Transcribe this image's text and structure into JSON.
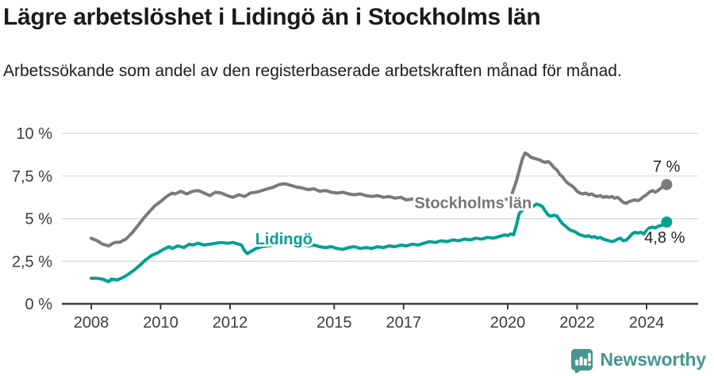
{
  "header": {
    "title": "Lägre arbetslöshet i Lidingö än i Stockholms län",
    "subtitle": "Arbetssökande som andel av den registerbaserade arbetskraften månad för månad."
  },
  "footer": {
    "brand": "Newsworthy"
  },
  "colors": {
    "stockholm_line": "#7a7a7a",
    "stockholm_label": "#767676",
    "lidingo_line": "#00a092",
    "grid": "#dcdcdc",
    "axis": "#3c3c3c",
    "title_text": "#1a1a1a",
    "annotation_text": "#232323",
    "brand": "#47968f"
  },
  "chart_data": {
    "type": "line",
    "unit": "%",
    "x_range": [
      2007.15,
      2025.5
    ],
    "y_range": [
      0,
      10
    ],
    "grid": true,
    "y_ticks": [
      {
        "v": 0,
        "label": "0 %"
      },
      {
        "v": 2.5,
        "label": "2,5 %"
      },
      {
        "v": 5,
        "label": "5 %"
      },
      {
        "v": 7.5,
        "label": "7,5 %"
      },
      {
        "v": 10,
        "label": "10 %"
      }
    ],
    "x_ticks": [
      {
        "x": 2008,
        "label": "2008"
      },
      {
        "x": 2010,
        "label": "2010"
      },
      {
        "x": 2012,
        "label": "2012"
      },
      {
        "x": 2015,
        "label": "2015"
      },
      {
        "x": 2017,
        "label": "2017"
      },
      {
        "x": 2020,
        "label": "2020"
      },
      {
        "x": 2022,
        "label": "2022"
      },
      {
        "x": 2024,
        "label": "2024"
      }
    ],
    "series": [
      {
        "name": "Stockholms län",
        "color": "#7a7a7a",
        "label_color": "#767676",
        "label_anchor": {
          "x": 2019.0,
          "y": 5.6
        },
        "end_label": "7 %",
        "end_label_offset": {
          "dx": 17,
          "dy": -16
        },
        "points": [
          [
            2008.0,
            3.85
          ],
          [
            2008.17,
            3.7
          ],
          [
            2008.33,
            3.5
          ],
          [
            2008.5,
            3.4
          ],
          [
            2008.67,
            3.6
          ],
          [
            2008.83,
            3.62
          ],
          [
            2009.0,
            3.8
          ],
          [
            2009.17,
            4.15
          ],
          [
            2009.33,
            4.55
          ],
          [
            2009.5,
            5.0
          ],
          [
            2009.67,
            5.4
          ],
          [
            2009.83,
            5.75
          ],
          [
            2010.0,
            6.0
          ],
          [
            2010.17,
            6.3
          ],
          [
            2010.33,
            6.5
          ],
          [
            2010.42,
            6.45
          ],
          [
            2010.58,
            6.6
          ],
          [
            2010.75,
            6.45
          ],
          [
            2010.92,
            6.6
          ],
          [
            2011.08,
            6.65
          ],
          [
            2011.25,
            6.5
          ],
          [
            2011.42,
            6.35
          ],
          [
            2011.58,
            6.55
          ],
          [
            2011.75,
            6.5
          ],
          [
            2011.92,
            6.35
          ],
          [
            2012.08,
            6.25
          ],
          [
            2012.25,
            6.4
          ],
          [
            2012.42,
            6.3
          ],
          [
            2012.58,
            6.5
          ],
          [
            2012.75,
            6.55
          ],
          [
            2012.92,
            6.65
          ],
          [
            2013.08,
            6.75
          ],
          [
            2013.25,
            6.85
          ],
          [
            2013.42,
            7.0
          ],
          [
            2013.58,
            7.05
          ],
          [
            2013.75,
            6.95
          ],
          [
            2013.92,
            6.85
          ],
          [
            2014.08,
            6.8
          ],
          [
            2014.25,
            6.7
          ],
          [
            2014.42,
            6.75
          ],
          [
            2014.58,
            6.6
          ],
          [
            2014.75,
            6.65
          ],
          [
            2014.92,
            6.55
          ],
          [
            2015.08,
            6.5
          ],
          [
            2015.25,
            6.55
          ],
          [
            2015.42,
            6.45
          ],
          [
            2015.58,
            6.4
          ],
          [
            2015.75,
            6.45
          ],
          [
            2015.92,
            6.35
          ],
          [
            2016.08,
            6.3
          ],
          [
            2016.25,
            6.35
          ],
          [
            2016.42,
            6.25
          ],
          [
            2016.58,
            6.3
          ],
          [
            2016.75,
            6.2
          ],
          [
            2016.92,
            6.25
          ],
          [
            2017.08,
            6.1
          ],
          [
            2017.25,
            6.15
          ],
          [
            2017.42,
            6.05
          ],
          [
            2017.58,
            6.1
          ],
          [
            2017.75,
            6.0
          ],
          [
            2017.92,
            6.05
          ],
          [
            2018.08,
            6.0
          ],
          [
            2018.25,
            6.05
          ],
          [
            2018.42,
            5.95
          ],
          [
            2018.58,
            6.0
          ],
          [
            2018.75,
            5.95
          ],
          [
            2018.92,
            6.0
          ],
          [
            2019.08,
            5.95
          ],
          [
            2019.25,
            6.0
          ],
          [
            2019.42,
            6.05
          ],
          [
            2019.58,
            6.0
          ],
          [
            2019.75,
            6.05
          ],
          [
            2019.92,
            6.1
          ],
          [
            2020.08,
            6.2
          ],
          [
            2020.25,
            7.2
          ],
          [
            2020.42,
            8.5
          ],
          [
            2020.5,
            8.85
          ],
          [
            2020.58,
            8.75
          ],
          [
            2020.67,
            8.6
          ],
          [
            2020.83,
            8.5
          ],
          [
            2020.92,
            8.45
          ],
          [
            2021.0,
            8.35
          ],
          [
            2021.08,
            8.3
          ],
          [
            2021.17,
            8.35
          ],
          [
            2021.25,
            8.2
          ],
          [
            2021.33,
            8.0
          ],
          [
            2021.42,
            7.85
          ],
          [
            2021.5,
            7.6
          ],
          [
            2021.58,
            7.45
          ],
          [
            2021.67,
            7.2
          ],
          [
            2021.75,
            7.05
          ],
          [
            2021.83,
            6.95
          ],
          [
            2021.92,
            6.8
          ],
          [
            2022.0,
            6.6
          ],
          [
            2022.08,
            6.5
          ],
          [
            2022.17,
            6.45
          ],
          [
            2022.25,
            6.5
          ],
          [
            2022.33,
            6.4
          ],
          [
            2022.42,
            6.45
          ],
          [
            2022.5,
            6.35
          ],
          [
            2022.58,
            6.3
          ],
          [
            2022.67,
            6.35
          ],
          [
            2022.75,
            6.25
          ],
          [
            2022.83,
            6.3
          ],
          [
            2022.92,
            6.25
          ],
          [
            2023.0,
            6.3
          ],
          [
            2023.08,
            6.2
          ],
          [
            2023.17,
            6.25
          ],
          [
            2023.25,
            6.1
          ],
          [
            2023.33,
            5.95
          ],
          [
            2023.42,
            5.9
          ],
          [
            2023.5,
            6.0
          ],
          [
            2023.58,
            6.05
          ],
          [
            2023.67,
            6.1
          ],
          [
            2023.75,
            6.05
          ],
          [
            2023.83,
            6.15
          ],
          [
            2023.92,
            6.3
          ],
          [
            2024.0,
            6.4
          ],
          [
            2024.08,
            6.55
          ],
          [
            2024.17,
            6.65
          ],
          [
            2024.25,
            6.55
          ],
          [
            2024.33,
            6.65
          ],
          [
            2024.42,
            6.8
          ],
          [
            2024.5,
            6.9
          ],
          [
            2024.58,
            7.0
          ]
        ]
      },
      {
        "name": "Lidingö",
        "color": "#00a092",
        "label_color": "#00a092",
        "label_anchor": {
          "x": 2013.55,
          "y": 3.5
        },
        "end_label": "4,8 %",
        "end_label_offset": {
          "dx": 23,
          "dy": 26
        },
        "points": [
          [
            2008.0,
            1.5
          ],
          [
            2008.17,
            1.5
          ],
          [
            2008.33,
            1.45
          ],
          [
            2008.5,
            1.3
          ],
          [
            2008.58,
            1.45
          ],
          [
            2008.75,
            1.4
          ],
          [
            2008.92,
            1.55
          ],
          [
            2009.08,
            1.75
          ],
          [
            2009.25,
            2.0
          ],
          [
            2009.42,
            2.3
          ],
          [
            2009.58,
            2.6
          ],
          [
            2009.75,
            2.85
          ],
          [
            2009.92,
            3.0
          ],
          [
            2010.08,
            3.2
          ],
          [
            2010.25,
            3.35
          ],
          [
            2010.33,
            3.25
          ],
          [
            2010.5,
            3.4
          ],
          [
            2010.67,
            3.3
          ],
          [
            2010.83,
            3.5
          ],
          [
            2010.92,
            3.45
          ],
          [
            2011.08,
            3.55
          ],
          [
            2011.25,
            3.45
          ],
          [
            2011.42,
            3.5
          ],
          [
            2011.58,
            3.55
          ],
          [
            2011.75,
            3.6
          ],
          [
            2011.92,
            3.55
          ],
          [
            2012.08,
            3.6
          ],
          [
            2012.25,
            3.5
          ],
          [
            2012.33,
            3.45
          ],
          [
            2012.42,
            3.1
          ],
          [
            2012.5,
            2.95
          ],
          [
            2012.58,
            3.05
          ],
          [
            2012.75,
            3.25
          ],
          [
            2012.92,
            3.35
          ],
          [
            2013.08,
            3.4
          ],
          [
            2013.25,
            3.45
          ],
          [
            2013.42,
            3.5
          ],
          [
            2013.58,
            3.45
          ],
          [
            2013.75,
            3.5
          ],
          [
            2013.92,
            3.45
          ],
          [
            2014.08,
            3.5
          ],
          [
            2014.25,
            3.4
          ],
          [
            2014.42,
            3.45
          ],
          [
            2014.58,
            3.35
          ],
          [
            2014.75,
            3.3
          ],
          [
            2014.92,
            3.35
          ],
          [
            2015.08,
            3.25
          ],
          [
            2015.25,
            3.2
          ],
          [
            2015.42,
            3.3
          ],
          [
            2015.58,
            3.35
          ],
          [
            2015.75,
            3.25
          ],
          [
            2015.92,
            3.3
          ],
          [
            2016.08,
            3.25
          ],
          [
            2016.25,
            3.35
          ],
          [
            2016.42,
            3.3
          ],
          [
            2016.58,
            3.4
          ],
          [
            2016.75,
            3.35
          ],
          [
            2016.92,
            3.45
          ],
          [
            2017.08,
            3.4
          ],
          [
            2017.25,
            3.5
          ],
          [
            2017.42,
            3.45
          ],
          [
            2017.58,
            3.55
          ],
          [
            2017.75,
            3.65
          ],
          [
            2017.92,
            3.6
          ],
          [
            2018.08,
            3.7
          ],
          [
            2018.25,
            3.65
          ],
          [
            2018.42,
            3.75
          ],
          [
            2018.58,
            3.7
          ],
          [
            2018.75,
            3.8
          ],
          [
            2018.92,
            3.75
          ],
          [
            2019.08,
            3.85
          ],
          [
            2019.25,
            3.8
          ],
          [
            2019.42,
            3.9
          ],
          [
            2019.58,
            3.85
          ],
          [
            2019.75,
            3.95
          ],
          [
            2019.92,
            4.05
          ],
          [
            2020.0,
            4.0
          ],
          [
            2020.08,
            4.1
          ],
          [
            2020.17,
            4.05
          ],
          [
            2020.25,
            4.6
          ],
          [
            2020.33,
            5.3
          ],
          [
            2020.42,
            5.5
          ],
          [
            2020.5,
            5.6
          ],
          [
            2020.58,
            5.7
          ],
          [
            2020.67,
            5.65
          ],
          [
            2020.75,
            5.75
          ],
          [
            2020.83,
            5.85
          ],
          [
            2020.92,
            5.8
          ],
          [
            2021.0,
            5.7
          ],
          [
            2021.08,
            5.45
          ],
          [
            2021.17,
            5.2
          ],
          [
            2021.25,
            5.15
          ],
          [
            2021.33,
            5.2
          ],
          [
            2021.42,
            5.15
          ],
          [
            2021.5,
            4.9
          ],
          [
            2021.58,
            4.7
          ],
          [
            2021.67,
            4.55
          ],
          [
            2021.75,
            4.4
          ],
          [
            2021.83,
            4.3
          ],
          [
            2021.92,
            4.25
          ],
          [
            2022.0,
            4.15
          ],
          [
            2022.08,
            4.05
          ],
          [
            2022.17,
            4.0
          ],
          [
            2022.25,
            3.95
          ],
          [
            2022.33,
            4.0
          ],
          [
            2022.42,
            3.9
          ],
          [
            2022.5,
            3.95
          ],
          [
            2022.58,
            3.85
          ],
          [
            2022.67,
            3.9
          ],
          [
            2022.75,
            3.8
          ],
          [
            2022.83,
            3.75
          ],
          [
            2022.92,
            3.7
          ],
          [
            2023.0,
            3.65
          ],
          [
            2023.08,
            3.7
          ],
          [
            2023.17,
            3.8
          ],
          [
            2023.25,
            3.85
          ],
          [
            2023.33,
            3.7
          ],
          [
            2023.42,
            3.75
          ],
          [
            2023.5,
            3.9
          ],
          [
            2023.58,
            4.1
          ],
          [
            2023.67,
            4.2
          ],
          [
            2023.75,
            4.15
          ],
          [
            2023.83,
            4.2
          ],
          [
            2023.92,
            4.1
          ],
          [
            2024.0,
            4.3
          ],
          [
            2024.08,
            4.45
          ],
          [
            2024.17,
            4.5
          ],
          [
            2024.25,
            4.45
          ],
          [
            2024.33,
            4.55
          ],
          [
            2024.42,
            4.6
          ],
          [
            2024.5,
            4.65
          ],
          [
            2024.58,
            4.8
          ]
        ]
      }
    ]
  }
}
